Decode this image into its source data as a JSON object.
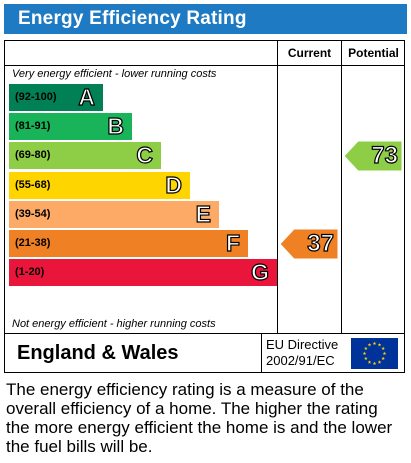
{
  "header": {
    "title": "Energy Efficiency Rating"
  },
  "columns": {
    "current": "Current",
    "potential": "Potential"
  },
  "notes": {
    "top": "Very energy efficient - lower running costs",
    "bottom": "Not energy efficient - higher running costs"
  },
  "chart_data": {
    "type": "bar",
    "title": "Energy Efficiency Rating",
    "categories": [
      "A",
      "B",
      "C",
      "D",
      "E",
      "F",
      "G"
    ],
    "bands": [
      {
        "letter": "A",
        "range": "(92-100)",
        "color": "#008054"
      },
      {
        "letter": "B",
        "range": "(81-91)",
        "color": "#19b459"
      },
      {
        "letter": "C",
        "range": "(69-80)",
        "color": "#8dce46"
      },
      {
        "letter": "D",
        "range": "(55-68)",
        "color": "#ffd500"
      },
      {
        "letter": "E",
        "range": "(39-54)",
        "color": "#fcaa65"
      },
      {
        "letter": "F",
        "range": "(21-38)",
        "color": "#ef8023"
      },
      {
        "letter": "G",
        "range": "(1-20)",
        "color": "#e9153b"
      }
    ],
    "current": {
      "value": 37,
      "band": "F",
      "color": "#ef8023"
    },
    "potential": {
      "value": 73,
      "band": "C",
      "color": "#8dce46"
    }
  },
  "footer": {
    "region": "England & Wales",
    "directive_line1": "EU Directive",
    "directive_line2": "2002/91/EC",
    "flag_icon": "eu-flag-icon",
    "flag_color": "#003399",
    "star_color": "#ffcc00"
  },
  "description": "The energy efficiency rating is a measure of the overall efficiency of a home. The higher the rating the more energy efficient the home is and the lower the fuel bills will be."
}
